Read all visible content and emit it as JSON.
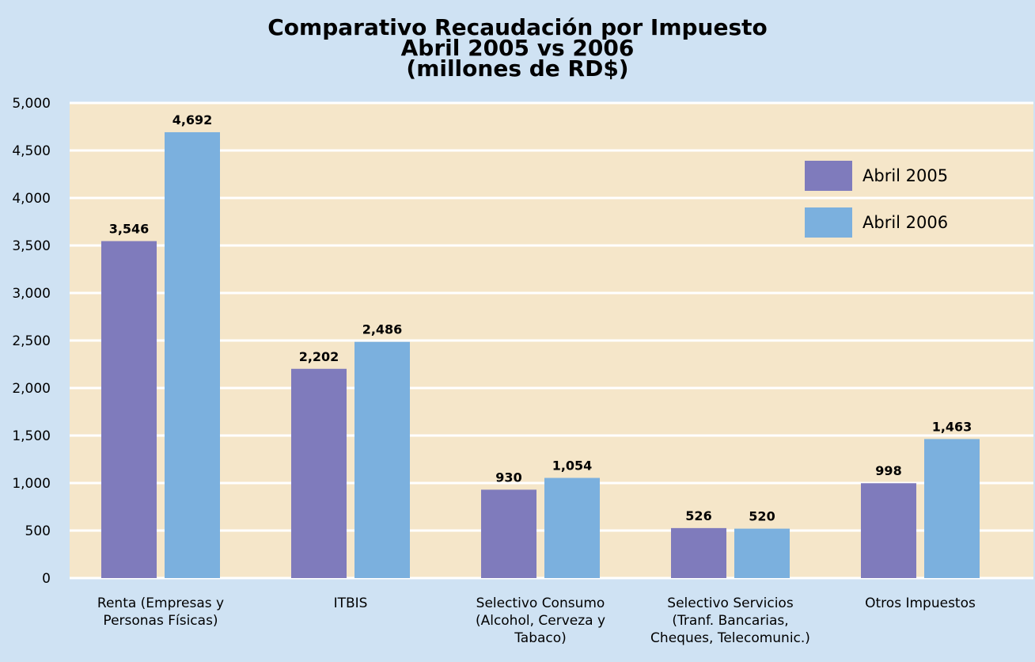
{
  "chart_data": {
    "type": "bar",
    "title": "Comparativo Recaudación por Impuesto\nAbril 2005 vs 2006\n(millones de RD$)",
    "categories": [
      "Renta (Empresas y\nPersonas Físicas)",
      "ITBIS",
      "Selectivo Consumo\n(Alcohol, Cerveza y\nTabaco)",
      "Selectivo Servicios\n(Tranf. Bancarias,\nCheques, Telecomunic.)",
      "Otros Impuestos"
    ],
    "series": [
      {
        "name": "Abril 2005",
        "color": "#7f7bbc",
        "values": [
          3546,
          2202,
          930,
          526,
          998
        ],
        "value_labels": [
          "3,546",
          "2,202",
          "930",
          "526",
          "998"
        ]
      },
      {
        "name": "Abril 2006",
        "color": "#7bb0de",
        "values": [
          4692,
          2486,
          1054,
          520,
          1463
        ],
        "value_labels": [
          "4,692",
          "2,486",
          "1,054",
          "520",
          "1,463"
        ]
      }
    ],
    "ylim": [
      0,
      5000
    ],
    "yticks": [
      0,
      500,
      {
        "value": 1000,
        "label": "1,000"
      },
      {
        "value": 1500,
        "label": "1,500"
      },
      {
        "value": 2000,
        "label": "2,000"
      },
      {
        "value": 2500,
        "label": "2,500"
      },
      {
        "value": 3000,
        "label": "3,000"
      },
      {
        "value": 3500,
        "label": "3,500"
      },
      {
        "value": 4000,
        "label": "4,000"
      },
      {
        "value": 4500,
        "label": "4,500"
      },
      {
        "value": 5000,
        "label": "5,000"
      }
    ],
    "grid": true,
    "legend": "upper right"
  }
}
